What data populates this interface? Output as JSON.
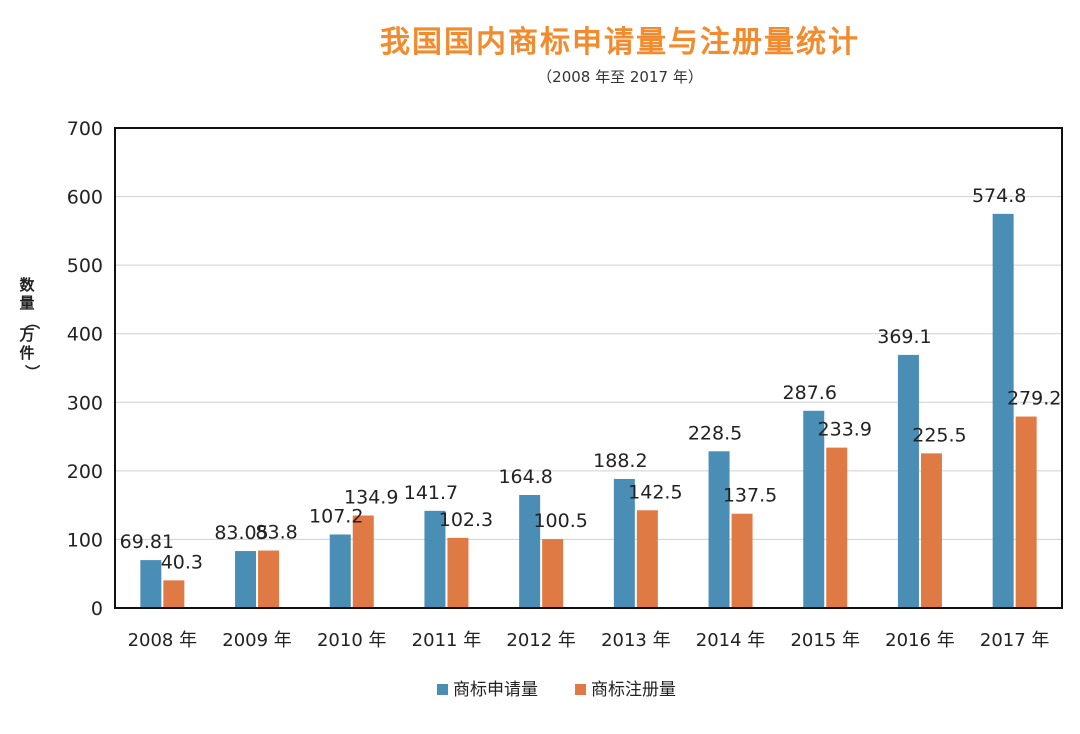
{
  "chart_data": {
    "type": "bar",
    "title": "我国国内商标申请量与注册量统计",
    "subtitle": "（2008 年至 2017 年）",
    "ylabel": "数量（万件）",
    "xlabel": "",
    "categories": [
      "2008 年",
      "2009 年",
      "2010 年",
      "2011 年",
      "2012 年",
      "2013 年",
      "2014 年",
      "2015 年",
      "2016 年",
      "2017 年"
    ],
    "series": [
      {
        "name": "商标申请量",
        "color": "#4a8db5",
        "values": [
          69.81,
          83.05,
          107.2,
          141.7,
          164.8,
          188.2,
          228.5,
          287.6,
          369.1,
          574.8
        ],
        "labels": [
          "69.81",
          "83.05",
          "107.2",
          "141.7",
          "164.8",
          "188.2",
          "228.5",
          "287.6",
          "369.1",
          "574.8"
        ]
      },
      {
        "name": "商标注册量",
        "color": "#e07a45",
        "values": [
          40.3,
          83.8,
          134.9,
          102.3,
          100.5,
          142.5,
          137.5,
          233.9,
          225.5,
          279.2
        ],
        "labels": [
          "40.3",
          "83.8",
          "134.9",
          "102.3",
          "100.5",
          "142.5",
          "137.5",
          "233.9",
          "225.5",
          "279.2"
        ]
      }
    ],
    "yticks": [
      "0",
      "100",
      "200",
      "300",
      "400",
      "500",
      "600",
      "700"
    ],
    "ylim": [
      0,
      700
    ],
    "grid": true,
    "legend": "bottom-center"
  }
}
